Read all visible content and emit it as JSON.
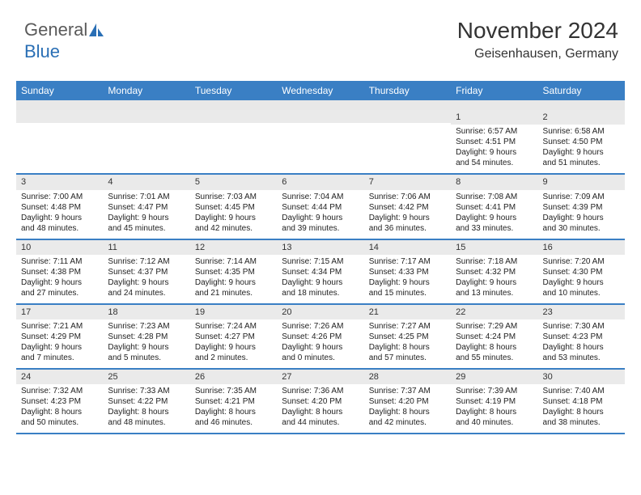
{
  "logo": {
    "part1": "General",
    "part2": "Blue"
  },
  "title": "November 2024",
  "location": "Geisenhausen, Germany",
  "colors": {
    "header_bg": "#3a7fc4",
    "header_text": "#ffffff",
    "daynum_bg": "#eaeaea",
    "border": "#3a7fc4",
    "text": "#222222",
    "logo_gray": "#5a5a5a",
    "logo_blue": "#2a6fb5"
  },
  "day_fontsize": 10,
  "header_fontsize": 12,
  "title_fontsize": 28,
  "location_fontsize": 16,
  "day_labels": [
    "Sunday",
    "Monday",
    "Tuesday",
    "Wednesday",
    "Thursday",
    "Friday",
    "Saturday"
  ],
  "weeks": [
    [
      null,
      null,
      null,
      null,
      null,
      {
        "n": "1",
        "sr": "Sunrise: 6:57 AM",
        "ss": "Sunset: 4:51 PM",
        "d1": "Daylight: 9 hours",
        "d2": "and 54 minutes."
      },
      {
        "n": "2",
        "sr": "Sunrise: 6:58 AM",
        "ss": "Sunset: 4:50 PM",
        "d1": "Daylight: 9 hours",
        "d2": "and 51 minutes."
      }
    ],
    [
      {
        "n": "3",
        "sr": "Sunrise: 7:00 AM",
        "ss": "Sunset: 4:48 PM",
        "d1": "Daylight: 9 hours",
        "d2": "and 48 minutes."
      },
      {
        "n": "4",
        "sr": "Sunrise: 7:01 AM",
        "ss": "Sunset: 4:47 PM",
        "d1": "Daylight: 9 hours",
        "d2": "and 45 minutes."
      },
      {
        "n": "5",
        "sr": "Sunrise: 7:03 AM",
        "ss": "Sunset: 4:45 PM",
        "d1": "Daylight: 9 hours",
        "d2": "and 42 minutes."
      },
      {
        "n": "6",
        "sr": "Sunrise: 7:04 AM",
        "ss": "Sunset: 4:44 PM",
        "d1": "Daylight: 9 hours",
        "d2": "and 39 minutes."
      },
      {
        "n": "7",
        "sr": "Sunrise: 7:06 AM",
        "ss": "Sunset: 4:42 PM",
        "d1": "Daylight: 9 hours",
        "d2": "and 36 minutes."
      },
      {
        "n": "8",
        "sr": "Sunrise: 7:08 AM",
        "ss": "Sunset: 4:41 PM",
        "d1": "Daylight: 9 hours",
        "d2": "and 33 minutes."
      },
      {
        "n": "9",
        "sr": "Sunrise: 7:09 AM",
        "ss": "Sunset: 4:39 PM",
        "d1": "Daylight: 9 hours",
        "d2": "and 30 minutes."
      }
    ],
    [
      {
        "n": "10",
        "sr": "Sunrise: 7:11 AM",
        "ss": "Sunset: 4:38 PM",
        "d1": "Daylight: 9 hours",
        "d2": "and 27 minutes."
      },
      {
        "n": "11",
        "sr": "Sunrise: 7:12 AM",
        "ss": "Sunset: 4:37 PM",
        "d1": "Daylight: 9 hours",
        "d2": "and 24 minutes."
      },
      {
        "n": "12",
        "sr": "Sunrise: 7:14 AM",
        "ss": "Sunset: 4:35 PM",
        "d1": "Daylight: 9 hours",
        "d2": "and 21 minutes."
      },
      {
        "n": "13",
        "sr": "Sunrise: 7:15 AM",
        "ss": "Sunset: 4:34 PM",
        "d1": "Daylight: 9 hours",
        "d2": "and 18 minutes."
      },
      {
        "n": "14",
        "sr": "Sunrise: 7:17 AM",
        "ss": "Sunset: 4:33 PM",
        "d1": "Daylight: 9 hours",
        "d2": "and 15 minutes."
      },
      {
        "n": "15",
        "sr": "Sunrise: 7:18 AM",
        "ss": "Sunset: 4:32 PM",
        "d1": "Daylight: 9 hours",
        "d2": "and 13 minutes."
      },
      {
        "n": "16",
        "sr": "Sunrise: 7:20 AM",
        "ss": "Sunset: 4:30 PM",
        "d1": "Daylight: 9 hours",
        "d2": "and 10 minutes."
      }
    ],
    [
      {
        "n": "17",
        "sr": "Sunrise: 7:21 AM",
        "ss": "Sunset: 4:29 PM",
        "d1": "Daylight: 9 hours",
        "d2": "and 7 minutes."
      },
      {
        "n": "18",
        "sr": "Sunrise: 7:23 AM",
        "ss": "Sunset: 4:28 PM",
        "d1": "Daylight: 9 hours",
        "d2": "and 5 minutes."
      },
      {
        "n": "19",
        "sr": "Sunrise: 7:24 AM",
        "ss": "Sunset: 4:27 PM",
        "d1": "Daylight: 9 hours",
        "d2": "and 2 minutes."
      },
      {
        "n": "20",
        "sr": "Sunrise: 7:26 AM",
        "ss": "Sunset: 4:26 PM",
        "d1": "Daylight: 9 hours",
        "d2": "and 0 minutes."
      },
      {
        "n": "21",
        "sr": "Sunrise: 7:27 AM",
        "ss": "Sunset: 4:25 PM",
        "d1": "Daylight: 8 hours",
        "d2": "and 57 minutes."
      },
      {
        "n": "22",
        "sr": "Sunrise: 7:29 AM",
        "ss": "Sunset: 4:24 PM",
        "d1": "Daylight: 8 hours",
        "d2": "and 55 minutes."
      },
      {
        "n": "23",
        "sr": "Sunrise: 7:30 AM",
        "ss": "Sunset: 4:23 PM",
        "d1": "Daylight: 8 hours",
        "d2": "and 53 minutes."
      }
    ],
    [
      {
        "n": "24",
        "sr": "Sunrise: 7:32 AM",
        "ss": "Sunset: 4:23 PM",
        "d1": "Daylight: 8 hours",
        "d2": "and 50 minutes."
      },
      {
        "n": "25",
        "sr": "Sunrise: 7:33 AM",
        "ss": "Sunset: 4:22 PM",
        "d1": "Daylight: 8 hours",
        "d2": "and 48 minutes."
      },
      {
        "n": "26",
        "sr": "Sunrise: 7:35 AM",
        "ss": "Sunset: 4:21 PM",
        "d1": "Daylight: 8 hours",
        "d2": "and 46 minutes."
      },
      {
        "n": "27",
        "sr": "Sunrise: 7:36 AM",
        "ss": "Sunset: 4:20 PM",
        "d1": "Daylight: 8 hours",
        "d2": "and 44 minutes."
      },
      {
        "n": "28",
        "sr": "Sunrise: 7:37 AM",
        "ss": "Sunset: 4:20 PM",
        "d1": "Daylight: 8 hours",
        "d2": "and 42 minutes."
      },
      {
        "n": "29",
        "sr": "Sunrise: 7:39 AM",
        "ss": "Sunset: 4:19 PM",
        "d1": "Daylight: 8 hours",
        "d2": "and 40 minutes."
      },
      {
        "n": "30",
        "sr": "Sunrise: 7:40 AM",
        "ss": "Sunset: 4:18 PM",
        "d1": "Daylight: 8 hours",
        "d2": "and 38 minutes."
      }
    ]
  ]
}
